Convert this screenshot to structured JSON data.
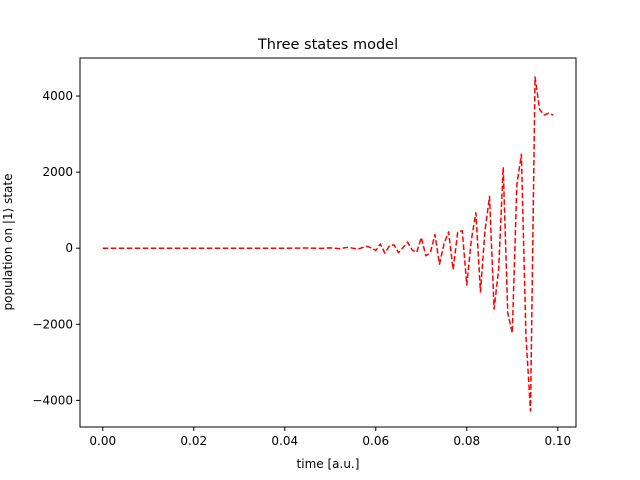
{
  "chart_data": {
    "type": "line",
    "title": "Three states model",
    "xlabel": "time [a.u.]",
    "ylabel": "population on  |1⟩ state",
    "xlim": [
      -0.005,
      0.104
    ],
    "ylim": [
      -4700,
      5000
    ],
    "xticks": [
      0.0,
      0.02,
      0.04,
      0.06,
      0.08,
      0.1
    ],
    "xtick_labels": [
      "0.00",
      "0.02",
      "0.04",
      "0.06",
      "0.08",
      "0.10"
    ],
    "yticks": [
      -4000,
      -2000,
      0,
      2000,
      4000
    ],
    "ytick_labels": [
      "−4000",
      "−2000",
      "0",
      "2000",
      "4000"
    ],
    "grid": false,
    "series": [
      {
        "color": "#ff0000",
        "linestyle": "dashed",
        "x": [
          0.0,
          0.01,
          0.02,
          0.03,
          0.04,
          0.045,
          0.048,
          0.05,
          0.052,
          0.054,
          0.056,
          0.058,
          0.059,
          0.06,
          0.061,
          0.062,
          0.063,
          0.064,
          0.065,
          0.066,
          0.067,
          0.068,
          0.069,
          0.07,
          0.071,
          0.072,
          0.073,
          0.074,
          0.075,
          0.076,
          0.077,
          0.078,
          0.079,
          0.08,
          0.081,
          0.082,
          0.083,
          0.084,
          0.085,
          0.086,
          0.087,
          0.088,
          0.089,
          0.09,
          0.091,
          0.092,
          0.093,
          0.094,
          0.095,
          0.096,
          0.097,
          0.098,
          0.099
        ],
        "y": [
          0,
          0,
          0,
          0,
          0,
          5,
          -5,
          10,
          -10,
          25,
          -25,
          50,
          10,
          -60,
          110,
          -130,
          60,
          90,
          -120,
          20,
          160,
          -50,
          -110,
          280,
          -200,
          -120,
          360,
          -420,
          120,
          430,
          -560,
          420,
          460,
          -970,
          220,
          930,
          -1150,
          460,
          1360,
          -1600,
          -560,
          2130,
          -1700,
          -2230,
          1670,
          2470,
          -2300,
          -4280,
          4500,
          3650,
          3500,
          3550,
          3500
        ]
      }
    ]
  }
}
